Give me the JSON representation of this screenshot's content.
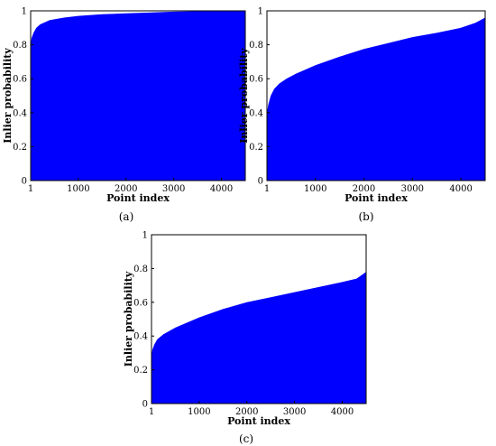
{
  "chart_data": [
    {
      "type": "area",
      "caption": "(a)",
      "xlabel": "Point index",
      "ylabel": "Inlier probability",
      "xlim": [
        1,
        4500
      ],
      "ylim": [
        0,
        1
      ],
      "xticks": [
        1,
        1000,
        2000,
        3000,
        4000
      ],
      "yticks": [
        0,
        0.2,
        0.4,
        0.6,
        0.8,
        1
      ],
      "ytick_labels": [
        "0",
        "0.2",
        "0.4",
        "0.6",
        "0.8",
        "1"
      ],
      "grid": false,
      "color": "#0000ff",
      "x": [
        1,
        20,
        60,
        120,
        200,
        400,
        700,
        1000,
        1500,
        2000,
        2500,
        3000,
        4000,
        4500
      ],
      "y": [
        0.8,
        0.84,
        0.87,
        0.9,
        0.92,
        0.945,
        0.96,
        0.97,
        0.98,
        0.985,
        0.99,
        0.995,
        1.0,
        1.0
      ]
    },
    {
      "type": "area",
      "caption": "(b)",
      "xlabel": "Point index",
      "ylabel": "Inlier probability",
      "xlim": [
        1,
        4500
      ],
      "ylim": [
        0,
        1
      ],
      "xticks": [
        1,
        1000,
        2000,
        3000,
        4000
      ],
      "yticks": [
        0,
        0.2,
        0.4,
        0.6,
        0.8,
        1
      ],
      "ytick_labels": [
        "0",
        "0.2",
        "0.4",
        "0.6",
        "0.8",
        "1"
      ],
      "grid": false,
      "color": "#0000ff",
      "x": [
        1,
        30,
        80,
        150,
        250,
        400,
        600,
        1000,
        1500,
        2000,
        2500,
        3000,
        3500,
        4000,
        4300,
        4500
      ],
      "y": [
        0.4,
        0.45,
        0.5,
        0.54,
        0.57,
        0.6,
        0.63,
        0.68,
        0.73,
        0.775,
        0.81,
        0.845,
        0.87,
        0.9,
        0.93,
        0.96
      ]
    },
    {
      "type": "area",
      "caption": "(c)",
      "xlabel": "Point index",
      "ylabel": "Inlier probability",
      "xlim": [
        1,
        4500
      ],
      "ylim": [
        0,
        1
      ],
      "xticks": [
        1,
        1000,
        2000,
        3000,
        4000
      ],
      "yticks": [
        0,
        0.2,
        0.4,
        0.6,
        0.8,
        1
      ],
      "ytick_labels": [
        "0",
        "0.2",
        "0.4",
        "0.6",
        "0.8",
        "1"
      ],
      "grid": false,
      "color": "#0000ff",
      "x": [
        1,
        20,
        60,
        120,
        250,
        500,
        1000,
        1500,
        2000,
        2500,
        3000,
        3500,
        4000,
        4300,
        4500
      ],
      "y": [
        0.28,
        0.32,
        0.35,
        0.38,
        0.41,
        0.45,
        0.51,
        0.56,
        0.6,
        0.63,
        0.66,
        0.69,
        0.72,
        0.74,
        0.78
      ]
    }
  ]
}
